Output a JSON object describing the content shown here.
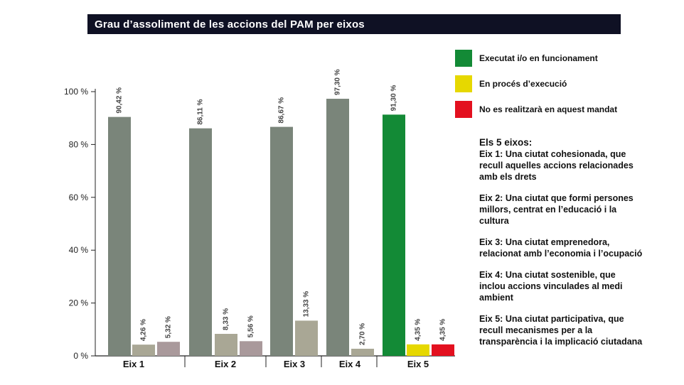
{
  "header": {
    "title": "Grau d’assoliment de les accions del PAM per eixos"
  },
  "legend": [
    {
      "label": "Executat i/o en funcionament",
      "color": "#138a36"
    },
    {
      "label": "En procés d’execució",
      "color": "#e6d800"
    },
    {
      "label": "No es realitzarà en aquest mandat",
      "color": "#e3101f"
    }
  ],
  "axes_info": {
    "heading": "Els 5 eixos:",
    "items": [
      {
        "key": "Eix 1:",
        "text": "Una ciutat cohesionada, que recull aquelles accions relacionades amb els drets"
      },
      {
        "key": "Eix 2:",
        "text": "Una ciutat que formi persones millors, centrat en l’educació i la cultura"
      },
      {
        "key": "Eix 3:",
        "text": "Una ciutat emprenedora, relacionat amb l’economia i l’ocupació"
      },
      {
        "key": "Eix 4:",
        "text": "Una ciutat sostenible, que inclou accions vinculades al medi ambient"
      },
      {
        "key": "Eix 5:",
        "text": "Una ciutat participativa, que recull mecanismes per a la transparència i la implicació ciutadana"
      }
    ]
  },
  "chart_data": {
    "type": "bar",
    "title": "Grau d’assoliment de les accions del PAM per eixos",
    "categories": [
      "Eix 1",
      "Eix 2",
      "Eix 3",
      "Eix 4",
      "Eix 5"
    ],
    "y_ticks": [
      "0 %",
      "20 %",
      "40 %",
      "60 %",
      "80 %",
      "100 %"
    ],
    "ylim": [
      0,
      100
    ],
    "bars": [
      {
        "category": "Eix 1",
        "status": "executed",
        "value": 90.42,
        "label": "90,42 %",
        "color": "#7a857a"
      },
      {
        "category": "Eix 1",
        "status": "in_progress",
        "value": 4.26,
        "label": "4,26 %",
        "color": "#a9a795"
      },
      {
        "category": "Eix 1",
        "status": "not_done",
        "value": 5.32,
        "label": "5,32 %",
        "color": "#a9999b"
      },
      {
        "category": "Eix 2",
        "status": "executed",
        "value": 86.11,
        "label": "86,11 %",
        "color": "#7a857a"
      },
      {
        "category": "Eix 2",
        "status": "in_progress",
        "value": 8.33,
        "label": "8,33 %",
        "color": "#a9a795"
      },
      {
        "category": "Eix 2",
        "status": "not_done",
        "value": 5.56,
        "label": "5,56 %",
        "color": "#a9999b"
      },
      {
        "category": "Eix 3",
        "status": "executed",
        "value": 86.67,
        "label": "86,67 %",
        "color": "#7a857a"
      },
      {
        "category": "Eix 3",
        "status": "in_progress",
        "value": 13.33,
        "label": "13,33 %",
        "color": "#a9a795"
      },
      {
        "category": "Eix 4",
        "status": "executed",
        "value": 97.3,
        "label": "97,30 %",
        "color": "#7a857a"
      },
      {
        "category": "Eix 4",
        "status": "in_progress",
        "value": 2.7,
        "label": "2,70 %",
        "color": "#a9a795"
      },
      {
        "category": "Eix 5",
        "status": "executed",
        "value": 91.3,
        "label": "91,30 %",
        "color": "#138a36"
      },
      {
        "category": "Eix 5",
        "status": "in_progress",
        "value": 4.35,
        "label": "4,35 %",
        "color": "#e6d800"
      },
      {
        "category": "Eix 5",
        "status": "not_done",
        "value": 4.35,
        "label": "4,35 %",
        "color": "#e3101f"
      }
    ]
  }
}
